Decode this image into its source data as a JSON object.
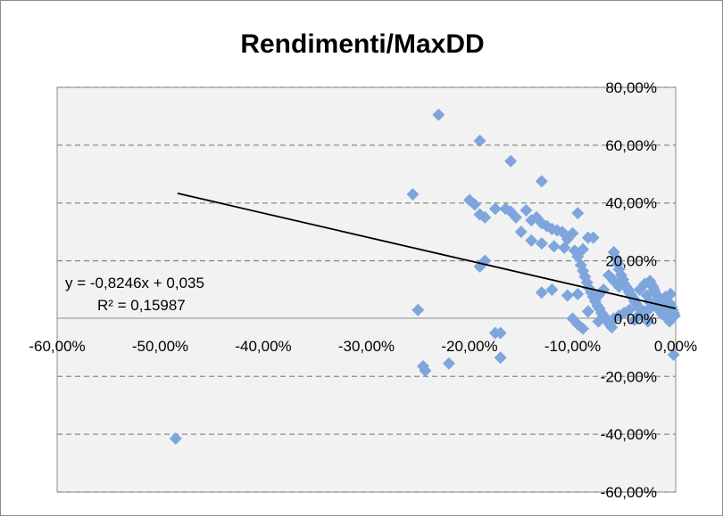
{
  "chart_data": {
    "type": "scatter",
    "title": "Rendimenti/MaxDD",
    "xlim": [
      -0.6,
      0.0
    ],
    "ylim": [
      -0.6,
      0.8
    ],
    "xticks": [
      -0.6,
      -0.5,
      -0.4,
      -0.3,
      -0.2,
      -0.1,
      0.0
    ],
    "xtick_labels": [
      "-60,00%",
      "-50,00%",
      "-40,00%",
      "-30,00%",
      "-20,00%",
      "-10,00%",
      "0,00%"
    ],
    "yticks": [
      0.8,
      0.6,
      0.4,
      0.2,
      0.0,
      -0.2,
      -0.4,
      -0.6
    ],
    "ytick_labels": [
      "80,00%",
      "60,00%",
      "40,00%",
      "20,00%",
      "0,00%",
      "-20,00%",
      "-40,00%",
      "-60,00%"
    ],
    "grid": "horizontal dashed",
    "marker_color": "#7ea6dc",
    "trendline": {
      "slope": -0.8246,
      "intercept": 0.035,
      "x_range": [
        -0.4832,
        0.0
      ],
      "color": "#000000",
      "equation": "y = -0,8246x + 0,035",
      "r_squared": "R² = 0,15987"
    },
    "points": [
      [
        -0.23,
        0.705
      ],
      [
        -0.19,
        0.615
      ],
      [
        -0.16,
        0.545
      ],
      [
        -0.13,
        0.475
      ],
      [
        -0.255,
        0.43
      ],
      [
        -0.2,
        0.41
      ],
      [
        -0.195,
        0.395
      ],
      [
        -0.19,
        0.36
      ],
      [
        -0.185,
        0.35
      ],
      [
        -0.175,
        0.38
      ],
      [
        -0.165,
        0.38
      ],
      [
        -0.16,
        0.37
      ],
      [
        -0.155,
        0.35
      ],
      [
        -0.145,
        0.375
      ],
      [
        -0.14,
        0.34
      ],
      [
        -0.135,
        0.35
      ],
      [
        -0.13,
        0.33
      ],
      [
        -0.125,
        0.32
      ],
      [
        -0.12,
        0.31
      ],
      [
        -0.115,
        0.305
      ],
      [
        -0.11,
        0.3
      ],
      [
        -0.105,
        0.275
      ],
      [
        -0.1,
        0.295
      ],
      [
        -0.095,
        0.365
      ],
      [
        -0.09,
        0.24
      ],
      [
        -0.085,
        0.28
      ],
      [
        -0.08,
        0.28
      ],
      [
        -0.15,
        0.3
      ],
      [
        -0.14,
        0.27
      ],
      [
        -0.13,
        0.26
      ],
      [
        -0.118,
        0.25
      ],
      [
        -0.108,
        0.245
      ],
      [
        -0.098,
        0.235
      ],
      [
        -0.095,
        0.215
      ],
      [
        -0.092,
        0.185
      ],
      [
        -0.09,
        0.165
      ],
      [
        -0.088,
        0.145
      ],
      [
        -0.086,
        0.125
      ],
      [
        -0.084,
        0.105
      ],
      [
        -0.082,
        0.09
      ],
      [
        -0.08,
        0.075
      ],
      [
        -0.078,
        0.06
      ],
      [
        -0.076,
        0.045
      ],
      [
        -0.074,
        0.035
      ],
      [
        -0.072,
        0.02
      ],
      [
        -0.07,
        0.01
      ],
      [
        -0.068,
        0.0
      ],
      [
        -0.066,
        -0.01
      ],
      [
        -0.064,
        -0.02
      ],
      [
        -0.062,
        -0.03
      ],
      [
        -0.06,
        0.23
      ],
      [
        -0.058,
        0.21
      ],
      [
        -0.056,
        0.19
      ],
      [
        -0.055,
        0.17
      ],
      [
        -0.053,
        0.15
      ],
      [
        -0.051,
        0.135
      ],
      [
        -0.05,
        0.12
      ],
      [
        -0.048,
        0.11
      ],
      [
        -0.046,
        0.1
      ],
      [
        -0.045,
        0.09
      ],
      [
        -0.043,
        0.08
      ],
      [
        -0.041,
        0.07
      ],
      [
        -0.04,
        0.06
      ],
      [
        -0.038,
        0.05
      ],
      [
        -0.036,
        0.04
      ],
      [
        -0.034,
        0.03
      ],
      [
        -0.033,
        0.02
      ],
      [
        -0.031,
        0.01
      ],
      [
        -0.029,
        0.0
      ],
      [
        -0.027,
        -0.01
      ],
      [
        -0.025,
        0.13
      ],
      [
        -0.024,
        0.12
      ],
      [
        -0.022,
        0.11
      ],
      [
        -0.021,
        0.1
      ],
      [
        -0.02,
        0.09
      ],
      [
        -0.018,
        0.08
      ],
      [
        -0.017,
        0.07
      ],
      [
        -0.015,
        0.06
      ],
      [
        -0.014,
        0.05
      ],
      [
        -0.012,
        0.04
      ],
      [
        -0.011,
        0.03
      ],
      [
        -0.01,
        0.02
      ],
      [
        -0.008,
        0.01
      ],
      [
        -0.007,
        0.0
      ],
      [
        -0.006,
        -0.01
      ],
      [
        -0.005,
        0.05
      ],
      [
        -0.004,
        0.04
      ],
      [
        -0.003,
        0.03
      ],
      [
        -0.002,
        0.02
      ],
      [
        -0.001,
        0.01
      ],
      [
        -0.065,
        0.15
      ],
      [
        -0.06,
        0.13
      ],
      [
        -0.055,
        0.11
      ],
      [
        -0.07,
        0.1
      ],
      [
        -0.075,
        0.08
      ],
      [
        -0.035,
        0.1
      ],
      [
        -0.03,
        0.12
      ],
      [
        -0.028,
        0.08
      ],
      [
        -0.026,
        0.06
      ],
      [
        -0.019,
        0.04
      ],
      [
        -0.016,
        0.03
      ],
      [
        -0.013,
        0.015
      ],
      [
        -0.009,
        0.005
      ],
      [
        -0.045,
        0.03
      ],
      [
        -0.05,
        0.02
      ],
      [
        -0.055,
        0.01
      ],
      [
        -0.06,
        0.0
      ],
      [
        -0.04,
        -0.005
      ],
      [
        -0.035,
        0.015
      ],
      [
        -0.03,
        0.025
      ],
      [
        -0.025,
        0.035
      ],
      [
        -0.02,
        0.055
      ],
      [
        -0.015,
        0.065
      ],
      [
        -0.01,
        0.075
      ],
      [
        -0.005,
        0.085
      ],
      [
        -0.12,
        0.1
      ],
      [
        -0.13,
        0.09
      ],
      [
        -0.105,
        0.08
      ],
      [
        -0.095,
        0.085
      ],
      [
        -0.085,
        0.025
      ],
      [
        -0.1,
        0.0
      ],
      [
        -0.095,
        -0.02
      ],
      [
        -0.09,
        -0.035
      ],
      [
        -0.075,
        -0.01
      ],
      [
        -0.25,
        0.03
      ],
      [
        -0.185,
        0.2
      ],
      [
        -0.19,
        0.18
      ],
      [
        -0.175,
        -0.05
      ],
      [
        -0.17,
        -0.05
      ],
      [
        -0.245,
        -0.165
      ],
      [
        -0.243,
        -0.18
      ],
      [
        -0.22,
        -0.155
      ],
      [
        -0.17,
        -0.135
      ],
      [
        -0.002,
        -0.125
      ],
      [
        -0.485,
        -0.415
      ]
    ]
  }
}
